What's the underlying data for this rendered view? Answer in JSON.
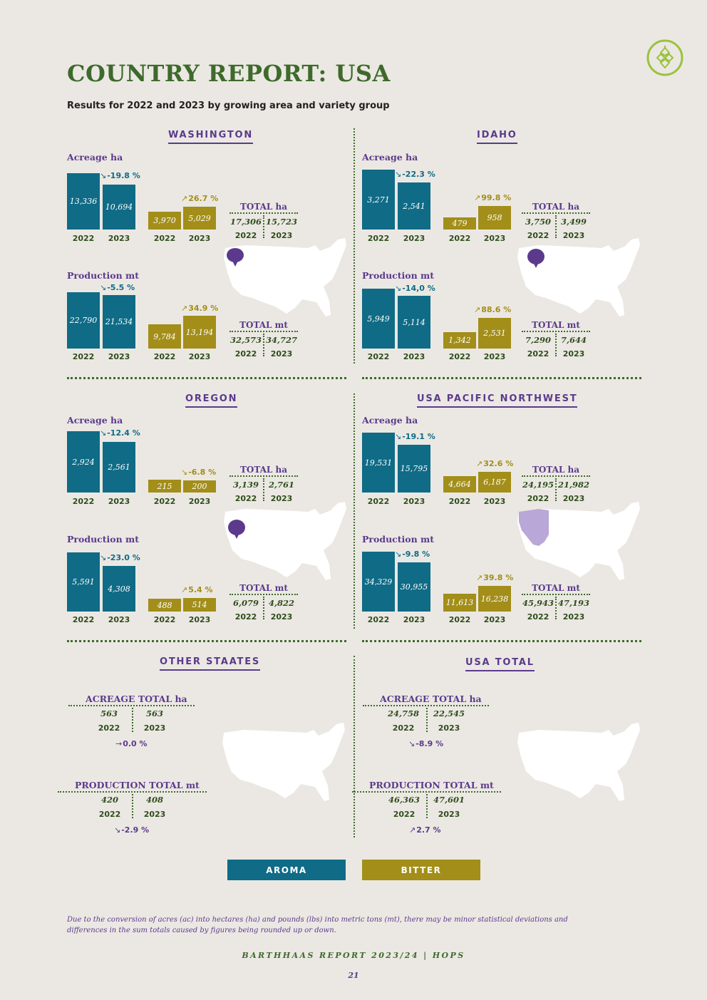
{
  "title": "COUNTRY REPORT: USA",
  "subtitle": "Results for 2022 and 2023 by growing area and variety group",
  "colors": {
    "aroma": "#0f6b86",
    "bitter": "#a28e19",
    "label": "#5b3a8c",
    "green": "#3e6a2b",
    "highlight": "#5b3a8c",
    "highlight_light": "#b9a7d8"
  },
  "regions": {
    "washington": {
      "name": "WASHINGTON",
      "acreage": {
        "label": "Acreage ha",
        "aroma": [
          "13,336",
          "10,694"
        ],
        "aroma_pct": "-19.8 %",
        "bitter": [
          "3,970",
          "5,029"
        ],
        "bitter_pct": "26.7 %",
        "total_label": "TOTAL ha",
        "total": [
          "17,306",
          "15,723"
        ]
      },
      "production": {
        "label": "Production mt",
        "aroma": [
          "22,790",
          "21,534"
        ],
        "aroma_pct": "-5.5 %",
        "bitter": [
          "9,784",
          "13,194"
        ],
        "bitter_pct": "34.9 %",
        "total_label": "TOTAL mt",
        "total": [
          "32,573",
          "34,727"
        ]
      },
      "years": [
        "2022",
        "2023"
      ]
    },
    "idaho": {
      "name": "IDAHO",
      "acreage": {
        "label": "Acreage ha",
        "aroma": [
          "3,271",
          "2,541"
        ],
        "aroma_pct": "-22.3 %",
        "bitter": [
          "479",
          "958"
        ],
        "bitter_pct": "99.8 %",
        "total_label": "TOTAL ha",
        "total": [
          "3,750",
          "3,499"
        ]
      },
      "production": {
        "label": "Production mt",
        "aroma": [
          "5,949",
          "5,114"
        ],
        "aroma_pct": "-14,0 %",
        "bitter": [
          "1,342",
          "2,531"
        ],
        "bitter_pct": "88.6 %",
        "total_label": "TOTAL mt",
        "total": [
          "7,290",
          "7,644"
        ]
      },
      "years": [
        "2022",
        "2023"
      ]
    },
    "oregon": {
      "name": "OREGON",
      "acreage": {
        "label": "Acreage ha",
        "aroma": [
          "2,924",
          "2,561"
        ],
        "aroma_pct": "-12.4 %",
        "bitter": [
          "215",
          "200"
        ],
        "bitter_pct": "-6.8 %",
        "total_label": "TOTAL ha",
        "total": [
          "3,139",
          "2,761"
        ]
      },
      "production": {
        "label": "Production mt",
        "aroma": [
          "5,591",
          "4,308"
        ],
        "aroma_pct": "-23.0 %",
        "bitter": [
          "488",
          "514"
        ],
        "bitter_pct": "5.4 %",
        "total_label": "TOTAL mt",
        "total": [
          "6,079",
          "4,822"
        ]
      },
      "years": [
        "2022",
        "2023"
      ]
    },
    "pnw": {
      "name": "USA PACIFIC NORTHWEST",
      "acreage": {
        "label": "Acreage ha",
        "aroma": [
          "19,531",
          "15,795"
        ],
        "aroma_pct": "-19.1 %",
        "bitter": [
          "4,664",
          "6,187"
        ],
        "bitter_pct": "32.6 %",
        "total_label": "TOTAL ha",
        "total": [
          "24,195",
          "21,982"
        ]
      },
      "production": {
        "label": "Production mt",
        "aroma": [
          "34,329",
          "30,955"
        ],
        "aroma_pct": "-9.8 %",
        "bitter": [
          "11,613",
          "16,238"
        ],
        "bitter_pct": "39.8 %",
        "total_label": "TOTAL mt",
        "total": [
          "45,943",
          "47,193"
        ]
      },
      "years": [
        "2022",
        "2023"
      ]
    },
    "other": {
      "name": "OTHER STAATES",
      "acreage": {
        "label": "ACREAGE TOTAL ha",
        "values": [
          "563",
          "563"
        ],
        "pct": "0.0 %"
      },
      "production": {
        "label": "PRODUCTION TOTAL mt",
        "values": [
          "420",
          "408"
        ],
        "pct": "-2.9 %"
      },
      "years": [
        "2022",
        "2023"
      ]
    },
    "usa_total": {
      "name": "USA TOTAL",
      "acreage": {
        "label": "ACREAGE TOTAL ha",
        "values": [
          "24,758",
          "22,545"
        ],
        "pct": "-8.9 %"
      },
      "production": {
        "label": "PRODUCTION TOTAL mt",
        "values": [
          "46,363",
          "47,601"
        ],
        "pct": "2.7 %"
      },
      "years": [
        "2022",
        "2023"
      ]
    }
  },
  "legend": {
    "aroma": "AROMA",
    "bitter": "BITTER"
  },
  "footnote": "Due to the conversion of acres (ac) into hectares (ha) and pounds (lbs) into metric tons (mt), there may be minor statistical deviations and differences in the sum totals caused by figures being rounded up or down.",
  "footer": "BARTHHAAS REPORT 2023/24 | HOPS",
  "page_number": "21"
}
